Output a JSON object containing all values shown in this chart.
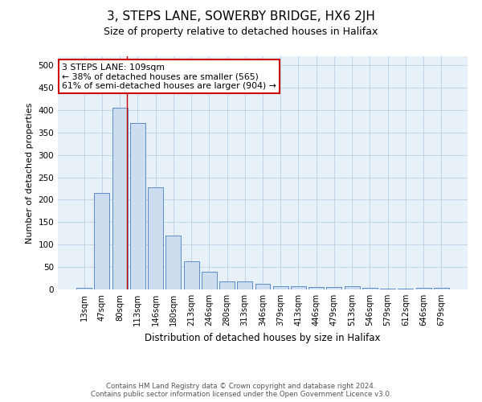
{
  "title": "3, STEPS LANE, SOWERBY BRIDGE, HX6 2JH",
  "subtitle": "Size of property relative to detached houses in Halifax",
  "xlabel": "Distribution of detached houses by size in Halifax",
  "ylabel": "Number of detached properties",
  "categories": [
    "13sqm",
    "47sqm",
    "80sqm",
    "113sqm",
    "146sqm",
    "180sqm",
    "213sqm",
    "246sqm",
    "280sqm",
    "313sqm",
    "346sqm",
    "379sqm",
    "413sqm",
    "446sqm",
    "479sqm",
    "513sqm",
    "546sqm",
    "579sqm",
    "612sqm",
    "646sqm",
    "679sqm"
  ],
  "values": [
    3,
    215,
    405,
    372,
    228,
    120,
    63,
    40,
    18,
    18,
    13,
    8,
    8,
    5,
    5,
    8,
    3,
    1,
    1,
    3,
    3
  ],
  "bar_color": "#ccddf0",
  "bar_edge_color": "#5b8cc8",
  "red_line_index": 2.42,
  "annotation_text": "3 STEPS LANE: 109sqm\n← 38% of detached houses are smaller (565)\n61% of semi-detached houses are larger (904) →",
  "annotation_box_color": "white",
  "annotation_box_edge_color": "#cc0000",
  "grid_color": "#c0d4e8",
  "bg_color": "#e8f0f8",
  "footer": "Contains HM Land Registry data © Crown copyright and database right 2024.\nContains public sector information licensed under the Open Government Licence v3.0.",
  "ylim": [
    0,
    520
  ],
  "yticks": [
    0,
    50,
    100,
    150,
    200,
    250,
    300,
    350,
    400,
    450,
    500
  ],
  "title_fontsize": 11,
  "subtitle_fontsize": 9
}
